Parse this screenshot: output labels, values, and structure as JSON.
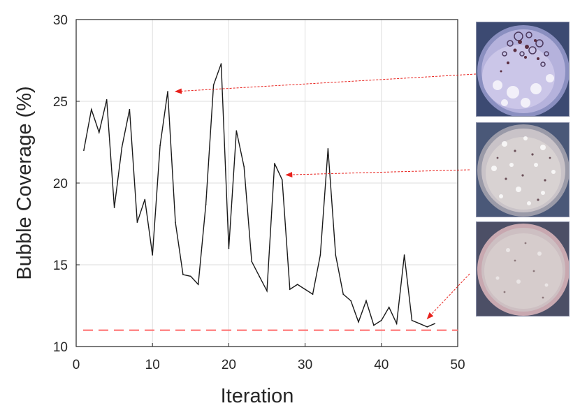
{
  "chart_data": {
    "type": "line",
    "xlabel": "Iteration",
    "ylabel": "Bubble Coverage (%)",
    "xlim": [
      0,
      50
    ],
    "ylim": [
      10,
      30
    ],
    "x_ticks": [
      0,
      10,
      20,
      30,
      40,
      50
    ],
    "y_ticks": [
      10,
      15,
      20,
      25,
      30
    ],
    "grid": true,
    "series": [
      {
        "name": "Bubble coverage",
        "color": "#1a1a1a",
        "x": [
          1,
          2,
          3,
          4,
          5,
          6,
          7,
          8,
          9,
          10,
          11,
          12,
          13,
          14,
          15,
          16,
          17,
          18,
          19,
          20,
          21,
          22,
          23,
          24,
          25,
          26,
          27,
          28,
          29,
          30,
          31,
          32,
          33,
          34,
          35,
          36,
          37,
          38,
          39,
          40,
          41,
          42,
          43,
          44,
          45,
          46,
          47
        ],
        "values": [
          22.0,
          24.5,
          23.1,
          25.1,
          18.5,
          22.2,
          24.5,
          17.6,
          19.0,
          15.6,
          22.3,
          25.6,
          17.6,
          14.4,
          14.3,
          13.8,
          18.7,
          26.0,
          27.3,
          16.0,
          23.2,
          21.0,
          15.2,
          14.3,
          13.4,
          21.2,
          20.2,
          13.5,
          13.8,
          13.5,
          13.2,
          15.6,
          22.1,
          15.6,
          13.2,
          12.8,
          11.5,
          12.8,
          11.3,
          11.6,
          12.4,
          11.4,
          15.6,
          11.6,
          11.4,
          11.2,
          11.4
        ]
      }
    ],
    "reference_line": {
      "y": 11.0,
      "style": "dashed",
      "color": "#ff6b6b"
    },
    "annotations": [
      {
        "target_x": 13,
        "target_y": 25.6,
        "image": "thumb-1"
      },
      {
        "target_x": 27.5,
        "target_y": 20.5,
        "image": "thumb-2"
      },
      {
        "target_x": 46,
        "target_y": 11.7,
        "image": "thumb-3"
      }
    ]
  },
  "colors": {
    "arrow": "#e8211c",
    "grid": "#dedede",
    "axis": "#262626"
  }
}
